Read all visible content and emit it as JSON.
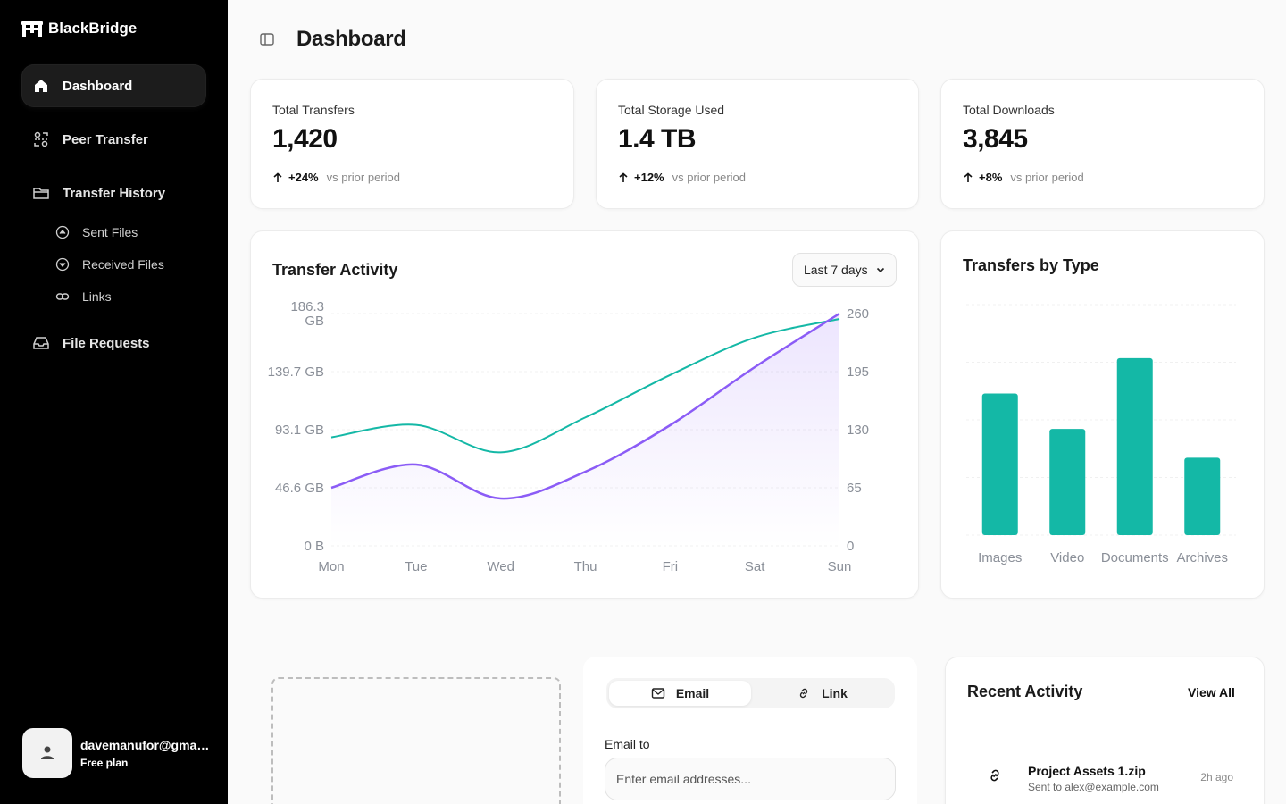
{
  "app": {
    "brand": "BlackBridge"
  },
  "sidebar": {
    "items": [
      {
        "label": "Dashboard",
        "icon": "home-icon",
        "active": true
      },
      {
        "label": "Peer Transfer",
        "icon": "peer-icon"
      },
      {
        "label": "Transfer History",
        "icon": "folder-icon"
      },
      {
        "label": "File Requests",
        "icon": "inbox-icon"
      }
    ],
    "history_sub": [
      {
        "label": "Sent Files",
        "icon": "arrow-up-circle-icon"
      },
      {
        "label": "Received Files",
        "icon": "arrow-down-circle-icon"
      },
      {
        "label": "Links",
        "icon": "link-icon"
      }
    ],
    "user": {
      "email": "davemanufor@gmail...",
      "plan": "Free plan"
    }
  },
  "header": {
    "title": "Dashboard"
  },
  "stats": [
    {
      "label": "Total Transfers",
      "value": "1,420",
      "delta": "+24%",
      "vs": "vs prior period"
    },
    {
      "label": "Total Storage Used",
      "value": "1.4 TB",
      "delta": "+12%",
      "vs": "vs prior period"
    },
    {
      "label": "Total Downloads",
      "value": "3,845",
      "delta": "+8%",
      "vs": "vs prior period"
    }
  ],
  "activity_chart": {
    "title": "Transfer Activity",
    "range": "Last 7 days"
  },
  "type_chart": {
    "title": "Transfers by Type"
  },
  "chart_data": [
    {
      "type": "line",
      "title": "Transfer Activity",
      "x": [
        "Mon",
        "Tue",
        "Wed",
        "Thu",
        "Fri",
        "Sat",
        "Sun"
      ],
      "left_ticks": [
        "186.3 GB",
        "139.7 GB",
        "93.1 GB",
        "46.6 GB",
        "0 B"
      ],
      "right_ticks": [
        "260",
        "195",
        "130",
        "65",
        "0"
      ],
      "left_ylim": [
        0,
        186.3
      ],
      "right_ylim": [
        0,
        260
      ],
      "series": [
        {
          "axis": "left",
          "color": "#14b8a6",
          "values": [
            87,
            97,
            75,
            103,
            137,
            167,
            182
          ]
        },
        {
          "axis": "right",
          "color": "#8b5cf6",
          "values": [
            65,
            91,
            53,
            83,
            135,
            200,
            260
          ]
        }
      ],
      "grid": true
    },
    {
      "type": "bar",
      "title": "Transfers by Type",
      "categories": [
        "Images",
        "Video",
        "Documents",
        "Archives"
      ],
      "values": [
        172,
        129,
        215,
        94
      ],
      "ylim": [
        0,
        280
      ],
      "color": "#14b8a6",
      "grid": true
    }
  ],
  "share": {
    "tabs": [
      {
        "label": "Email",
        "icon": "mail-icon",
        "active": true
      },
      {
        "label": "Link",
        "icon": "link-icon"
      }
    ],
    "email_label": "Email to",
    "email_placeholder": "Enter email addresses..."
  },
  "recent": {
    "title": "Recent Activity",
    "view_all": "View All",
    "items": [
      {
        "name": "Project Assets 1.zip",
        "sub": "Sent to alex@example.com",
        "time": "2h ago",
        "icon": "link-icon"
      }
    ]
  }
}
